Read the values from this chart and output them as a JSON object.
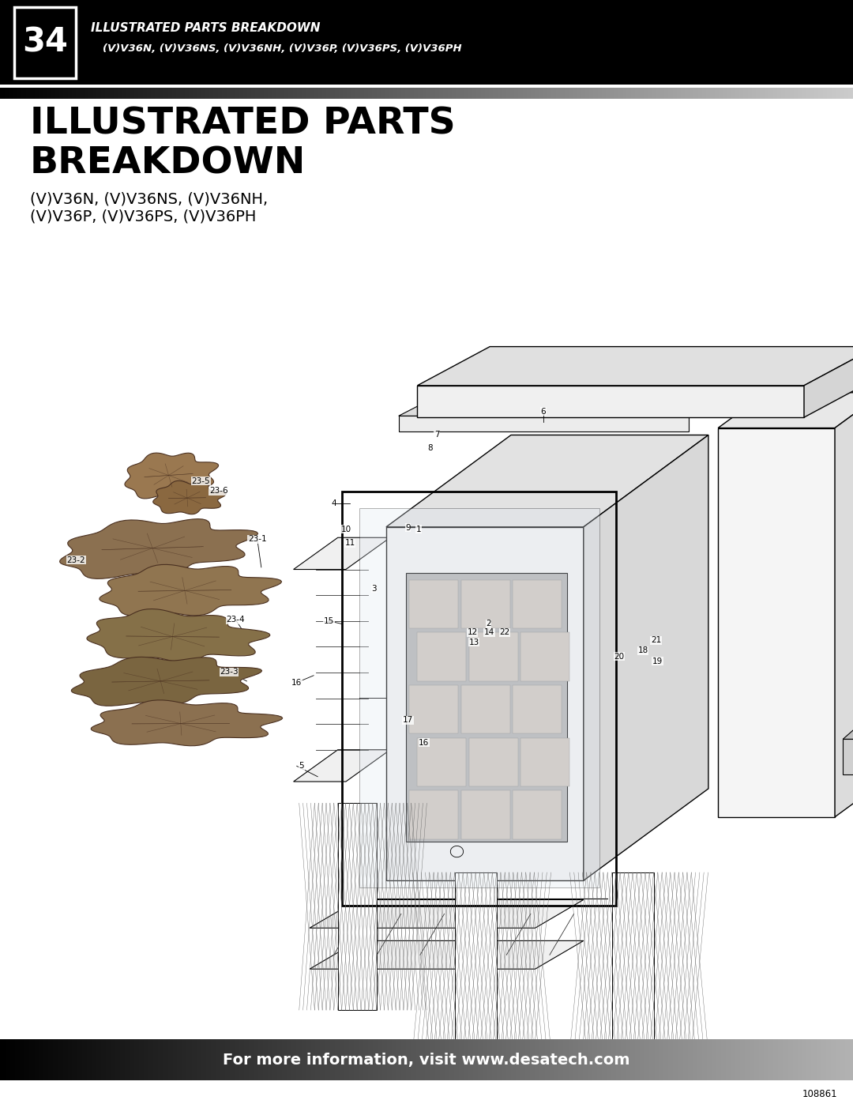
{
  "page_number": "34",
  "header_title_line1": "ILLUSTRATED PARTS BREAKDOWN",
  "header_title_line2": "(V)V36N, (V)V36NS, (V)V36NH, (V)V36P, (V)V36PS, (V)V36PH",
  "main_title_line1": "ILLUSTRATED PARTS",
  "main_title_line2": "BREAKDOWN",
  "subtitle_line1": "(V)V36N, (V)V36NS, (V)V36NH,",
  "subtitle_line2": "(V)V36P, (V)V36PS, (V)V36PH",
  "footer_text": "For more information, visit www.desatech.com",
  "doc_number": "108861",
  "bg_color": "#ffffff"
}
